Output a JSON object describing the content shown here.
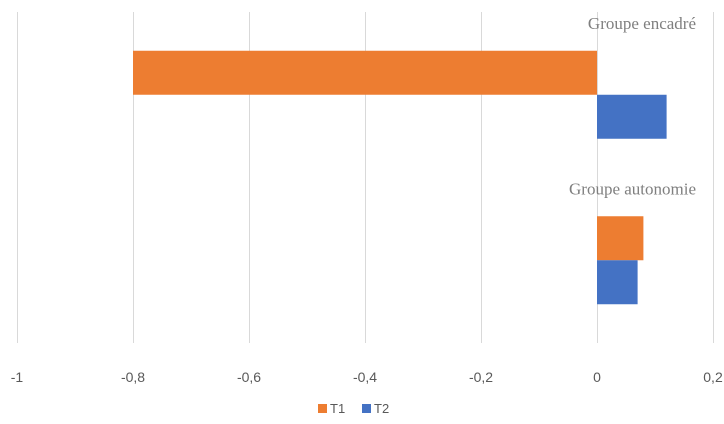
{
  "chart_data": {
    "type": "bar",
    "orientation": "horizontal",
    "categories": [
      "Groupe encadré",
      "Groupe autonomie"
    ],
    "series": [
      {
        "name": "T1",
        "color": "#ed7d31",
        "values": [
          -0.8,
          0.08
        ]
      },
      {
        "name": "T2",
        "color": "#4472c4",
        "values": [
          0.12,
          0.07
        ]
      }
    ],
    "xlim": [
      -1,
      0.2
    ],
    "xticks": [
      -1,
      -0.8,
      -0.6,
      -0.4,
      -0.2,
      0,
      0.2
    ],
    "xtick_labels": [
      "-1",
      "-0,8",
      "-0,6",
      "-0,4",
      "-0,2",
      "0",
      "0,2"
    ],
    "grid": true,
    "legend_position": "bottom"
  }
}
